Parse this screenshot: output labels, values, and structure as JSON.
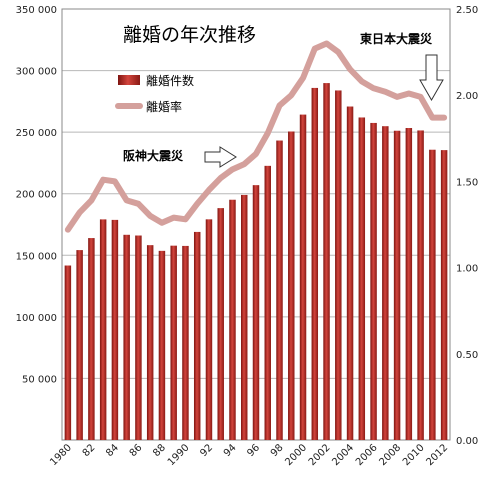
{
  "chart_data": {
    "type": "bar",
    "title": "離婚の年次推移",
    "x": [
      1980,
      1981,
      1982,
      1983,
      1984,
      1985,
      1986,
      1987,
      1988,
      1989,
      1990,
      1991,
      1992,
      1993,
      1994,
      1995,
      1996,
      1997,
      1998,
      1999,
      2000,
      2001,
      2002,
      2003,
      2004,
      2005,
      2006,
      2007,
      2008,
      2009,
      2010,
      2011,
      2012
    ],
    "x_tick_labels": [
      "1980",
      "82",
      "84",
      "86",
      "88",
      "1990",
      "92",
      "94",
      "96",
      "98",
      "2000",
      "2002",
      "2004",
      "2006",
      "2008",
      "2010",
      "2012"
    ],
    "series": [
      {
        "name": "離婚件数",
        "type": "bar",
        "axis": "left",
        "color": "#b22a24",
        "values": [
          141689,
          154221,
          163980,
          179150,
          178746,
          166640,
          166054,
          158227,
          153600,
          157811,
          157608,
          168969,
          179191,
          188297,
          195106,
          199016,
          206955,
          222635,
          243183,
          250529,
          264246,
          285911,
          289836,
          283854,
          270804,
          261917,
          257475,
          254832,
          251136,
          253353,
          251378,
          235719,
          235406
        ]
      },
      {
        "name": "離婚率",
        "type": "line",
        "axis": "right",
        "color": "#d4a09c",
        "values": [
          1.22,
          1.32,
          1.39,
          1.51,
          1.5,
          1.39,
          1.37,
          1.3,
          1.26,
          1.29,
          1.28,
          1.37,
          1.45,
          1.52,
          1.57,
          1.6,
          1.66,
          1.78,
          1.94,
          2.0,
          2.1,
          2.27,
          2.3,
          2.25,
          2.15,
          2.08,
          2.04,
          2.02,
          1.99,
          2.01,
          1.99,
          1.87,
          1.87
        ]
      }
    ],
    "y_left": {
      "min": 0,
      "max": 350000,
      "ticks": [
        0,
        50000,
        100000,
        150000,
        200000,
        250000,
        300000,
        350000
      ],
      "tick_labels": [
        "",
        "50 000",
        "100 000",
        "150 000",
        "200 000",
        "250 000",
        "300 000",
        "350 000"
      ]
    },
    "y_right": {
      "min": 0,
      "max": 2.5,
      "ticks": [
        0,
        0.5,
        1,
        1.5,
        2,
        2.5
      ],
      "tick_labels": [
        "0.00",
        "0.50",
        "1.00",
        "1.50",
        "2.00",
        "2.50"
      ]
    },
    "grid": true,
    "legend": {
      "position": "upper-left inside plot",
      "entries": [
        "離婚件数",
        "離婚率"
      ]
    },
    "annotations": [
      {
        "text": "阪神大震災",
        "year": 1995,
        "arrow": "right"
      },
      {
        "text": "東日本大震災",
        "year": 2011,
        "arrow": "down"
      }
    ]
  }
}
